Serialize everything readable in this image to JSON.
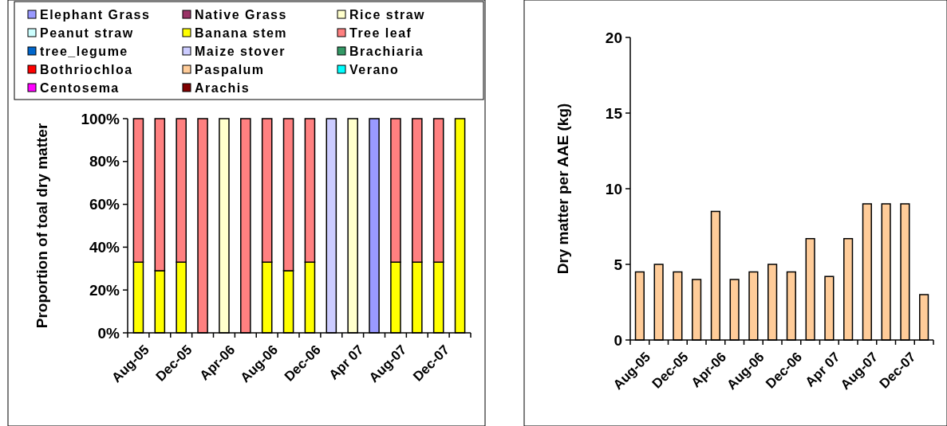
{
  "chart_data": [
    {
      "type": "bar",
      "stacked": true,
      "ylabel": "Proportion of toal dry matter",
      "legend": "top",
      "grid": false,
      "categories": [
        "Aug-05",
        null,
        "Dec-05",
        null,
        "Apr-06",
        null,
        "Aug-06",
        null,
        "Dec-06",
        null,
        "Apr 07",
        null,
        "Aug-07",
        null,
        "Dec-07",
        null
      ],
      "ylim": [
        0,
        100
      ],
      "yticks": [
        {
          "value": 0,
          "label": "0%"
        },
        {
          "value": 20,
          "label": "20%"
        },
        {
          "value": 40,
          "label": "40%"
        },
        {
          "value": 60,
          "label": "60%"
        },
        {
          "value": 80,
          "label": "80%"
        },
        {
          "value": 100,
          "label": "100%"
        }
      ],
      "series": [
        {
          "name": "Elephant Grass",
          "color": "#9999ff",
          "values": [
            0,
            0,
            0,
            0,
            0,
            0,
            0,
            0,
            0,
            0,
            0,
            100,
            0,
            0,
            0,
            0
          ]
        },
        {
          "name": "Native Grass",
          "color": "#993366",
          "values": [
            0,
            0,
            0,
            0,
            0,
            0,
            0,
            0,
            0,
            0,
            0,
            0,
            0,
            0,
            0,
            0
          ]
        },
        {
          "name": "Rice straw",
          "color": "#ffffcc",
          "values": [
            0,
            0,
            0,
            0,
            100,
            0,
            0,
            0,
            0,
            0,
            100,
            0,
            0,
            0,
            0,
            0
          ]
        },
        {
          "name": "Peanut straw",
          "color": "#ccffff",
          "values": [
            0,
            0,
            0,
            0,
            0,
            0,
            0,
            0,
            0,
            0,
            0,
            0,
            0,
            0,
            0,
            0
          ]
        },
        {
          "name": "Banana stem",
          "color": "#ffff00",
          "values": [
            33,
            29,
            33,
            0,
            0,
            0,
            33,
            29,
            33,
            0,
            0,
            0,
            33,
            33,
            33,
            100
          ]
        },
        {
          "name": "Tree leaf",
          "color": "#ff8080",
          "values": [
            67,
            71,
            67,
            100,
            0,
            100,
            67,
            71,
            67,
            0,
            0,
            0,
            67,
            67,
            67,
            0
          ]
        },
        {
          "name": "tree_legume",
          "color": "#0066cc",
          "values": [
            0,
            0,
            0,
            0,
            0,
            0,
            0,
            0,
            0,
            0,
            0,
            0,
            0,
            0,
            0,
            0
          ]
        },
        {
          "name": "Maize stover",
          "color": "#ccccff",
          "values": [
            0,
            0,
            0,
            0,
            0,
            0,
            0,
            0,
            0,
            100,
            0,
            0,
            0,
            0,
            0,
            0
          ]
        },
        {
          "name": "Brachiaria",
          "color": "#339966",
          "values": [
            0,
            0,
            0,
            0,
            0,
            0,
            0,
            0,
            0,
            0,
            0,
            0,
            0,
            0,
            0,
            0
          ]
        },
        {
          "name": "Bothriochloa",
          "color": "#ff0000",
          "values": [
            0,
            0,
            0,
            0,
            0,
            0,
            0,
            0,
            0,
            0,
            0,
            0,
            0,
            0,
            0,
            0
          ]
        },
        {
          "name": "Paspalum",
          "color": "#ffcc99",
          "values": [
            0,
            0,
            0,
            0,
            0,
            0,
            0,
            0,
            0,
            0,
            0,
            0,
            0,
            0,
            0,
            0
          ]
        },
        {
          "name": "Verano",
          "color": "#00ffff",
          "values": [
            0,
            0,
            0,
            0,
            0,
            0,
            0,
            0,
            0,
            0,
            0,
            0,
            0,
            0,
            0,
            0
          ]
        },
        {
          "name": "Centosema",
          "color": "#ff00ff",
          "values": [
            0,
            0,
            0,
            0,
            0,
            0,
            0,
            0,
            0,
            0,
            0,
            0,
            0,
            0,
            0,
            0
          ]
        },
        {
          "name": "Arachis",
          "color": "#800000",
          "values": [
            0,
            0,
            0,
            0,
            0,
            0,
            0,
            0,
            0,
            0,
            0,
            0,
            0,
            0,
            0,
            0
          ]
        }
      ]
    },
    {
      "type": "bar",
      "ylabel": "Dry matter per AAE (kg)",
      "grid": false,
      "categories": [
        "Aug-05",
        null,
        "Dec-05",
        null,
        "Apr-06",
        null,
        "Aug-06",
        null,
        "Dec-06",
        null,
        "Apr 07",
        null,
        "Aug-07",
        null,
        "Dec-07",
        null
      ],
      "ylim": [
        0,
        20
      ],
      "yticks": [
        0,
        5,
        10,
        15,
        20
      ],
      "series": [
        {
          "color": "#ffcc99",
          "values": [
            4.5,
            5,
            4.5,
            4,
            8.5,
            4,
            4.5,
            5,
            4.5,
            6.7,
            4.2,
            6.7,
            9,
            9,
            9,
            3
          ]
        }
      ]
    }
  ]
}
